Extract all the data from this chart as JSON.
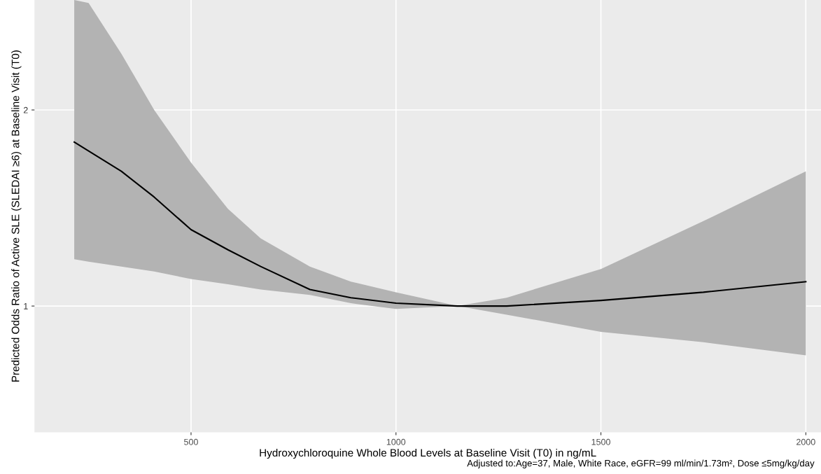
{
  "chart_data": {
    "type": "line",
    "xlabel": "Hydroxychloroquine Whole Blood Levels at Baseline Visit (T0) in ng/mL",
    "ylabel": "Predicted Odds Ratio of Active SLE (SLEDAI ≥6) at Baseline Visit (T0)",
    "annotations": [
      "Adjusted to:Age=37, Male, White Race, eGFR=99 ml/min/1.73m², Dose ≤5mg/kg/day"
    ],
    "series": [
      {
        "color": "#000000",
        "x": [
          215,
          250,
          330,
          410,
          500,
          590,
          670,
          790,
          890,
          1000,
          1150,
          1270,
          1500,
          1750,
          2000
        ],
        "values": [
          1.785,
          1.73,
          1.61,
          1.47,
          1.31,
          1.22,
          1.15,
          1.06,
          1.03,
          1.01,
          1.0,
          1.0,
          1.02,
          1.05,
          1.09
        ],
        "lower": [
          1.18,
          1.17,
          1.15,
          1.13,
          1.1,
          1.08,
          1.06,
          1.04,
          1.01,
          0.99,
          1.0,
          0.97,
          0.913,
          0.88,
          0.84
        ],
        "upper": [
          2.95,
          2.92,
          2.44,
          2.0,
          1.66,
          1.41,
          1.27,
          1.15,
          1.09,
          1.05,
          1.0,
          1.03,
          1.14,
          1.35,
          1.61
        ]
      }
    ],
    "log": "y",
    "xlim": [
      118,
      2037
    ],
    "xticks": [
      500,
      1000,
      1500,
      2000
    ],
    "ylim": [
      0.64,
      2.95
    ],
    "yticks": [
      1,
      2
    ],
    "grid": true,
    "marker": "none",
    "line_style": "solid"
  }
}
